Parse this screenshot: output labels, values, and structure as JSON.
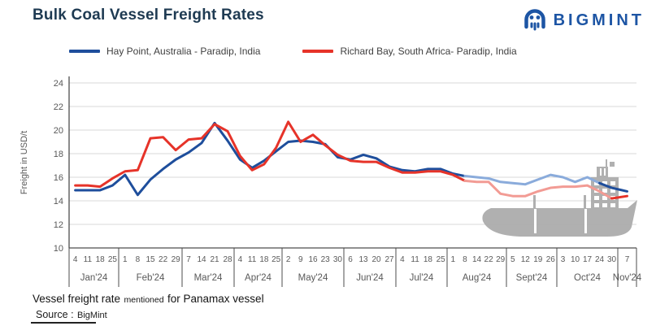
{
  "header": {
    "title": "Bulk Coal Vessel Freight Rates",
    "brand": "BIGMINT"
  },
  "legend": {
    "items": [
      {
        "label": "Hay Point, Australia - Paradip, India",
        "color": "#1e4e9c"
      },
      {
        "label": "Richard Bay, South Africa- Paradip, India",
        "color": "#e63329"
      }
    ]
  },
  "chart_data": {
    "type": "line",
    "title": "Bulk Coal Vessel Freight Rates",
    "ylabel": "Freight  in USD/t",
    "ylim": [
      10,
      24
    ],
    "yticks": [
      10,
      12,
      14,
      16,
      18,
      20,
      22,
      24
    ],
    "grid": true,
    "legend_position": "top",
    "x_axis_unit": "weekly dates",
    "months": [
      {
        "label": "Jan'24",
        "days": [
          4,
          11,
          18,
          25
        ]
      },
      {
        "label": "Feb'24",
        "days": [
          1,
          8,
          15,
          22,
          29
        ]
      },
      {
        "label": "Mar'24",
        "days": [
          7,
          14,
          21,
          28
        ]
      },
      {
        "label": "Apr'24",
        "days": [
          4,
          11,
          18,
          25
        ]
      },
      {
        "label": "May'24",
        "days": [
          2,
          9,
          16,
          23,
          30
        ]
      },
      {
        "label": "Jun'24",
        "days": [
          6,
          13,
          20,
          27
        ]
      },
      {
        "label": "Jul'24",
        "days": [
          4,
          11,
          18,
          25
        ]
      },
      {
        "label": "Aug'24",
        "days": [
          1,
          8,
          14,
          22,
          29
        ]
      },
      {
        "label": "Sept'24",
        "days": [
          5,
          12,
          19,
          26
        ]
      },
      {
        "label": "Oct'24",
        "days": [
          3,
          10,
          17,
          24,
          30
        ]
      },
      {
        "label": "Nov'24",
        "days": [
          7
        ]
      }
    ],
    "series": [
      {
        "name": "Hay Point, Australia - Paradip, India",
        "color": "#1e4e9c",
        "faded_color": "#8aabdb",
        "fade_start_index": 31,
        "fade_end_index": 42,
        "values": [
          14.9,
          14.9,
          14.9,
          15.3,
          16.2,
          14.5,
          15.8,
          16.7,
          17.5,
          18.1,
          18.9,
          20.6,
          19.1,
          17.5,
          16.8,
          17.4,
          18.2,
          19.0,
          19.1,
          19.0,
          18.8,
          17.7,
          17.5,
          17.9,
          17.6,
          16.9,
          16.6,
          16.5,
          16.7,
          16.7,
          16.3,
          16.1,
          16.0,
          15.9,
          15.6,
          15.5,
          15.4,
          15.8,
          16.2,
          16.0,
          15.6,
          16.0,
          15.5,
          15.1,
          14.8
        ]
      },
      {
        "name": "Richard Bay, South Africa- Paradip, India",
        "color": "#e63329",
        "faded_color": "#f29b94",
        "fade_start_index": 31,
        "fade_end_index": 43,
        "values": [
          15.3,
          15.3,
          15.2,
          15.9,
          16.5,
          16.6,
          19.3,
          19.4,
          18.3,
          19.2,
          19.3,
          20.5,
          19.9,
          17.8,
          16.6,
          17.1,
          18.5,
          20.7,
          19.0,
          19.6,
          18.7,
          17.9,
          17.4,
          17.3,
          17.3,
          16.8,
          16.4,
          16.4,
          16.5,
          16.5,
          16.2,
          15.7,
          15.6,
          15.6,
          14.6,
          14.4,
          14.4,
          14.8,
          15.1,
          15.2,
          15.2,
          15.3,
          14.8,
          14.2,
          14.4
        ]
      }
    ],
    "watermark": "bulk-carrier-ship-silhouette",
    "colors": {
      "grid": "#d9d9d9",
      "axis": "#4d4d4d",
      "tick_text": "#595959",
      "ship": "#acacac"
    }
  },
  "footer": {
    "note_part1": "Vessel freight rate",
    "note_part2": "mentioned",
    "note_part3": "for Panamax  vessel",
    "source_label": "Source :",
    "source_value": "BigMint"
  }
}
